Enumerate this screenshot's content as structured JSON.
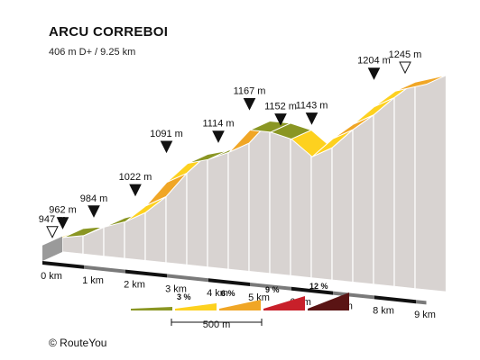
{
  "chart_data": {
    "type": "area",
    "title": "ARCU CORREBOI",
    "subtitle": "406 m D+ / 9.25 km",
    "x_unit": "km",
    "y_unit": "m",
    "distance_ticks": [
      {
        "km": 0,
        "label": "0 km"
      },
      {
        "km": 1,
        "label": "1 km"
      },
      {
        "km": 2,
        "label": "2 km"
      },
      {
        "km": 3,
        "label": "3 km"
      },
      {
        "km": 4,
        "label": "4 km"
      },
      {
        "km": 5,
        "label": "5 km"
      },
      {
        "km": 6,
        "label": "6 km"
      },
      {
        "km": 7,
        "label": "7 km"
      },
      {
        "km": 8,
        "label": "8 km"
      },
      {
        "km": 9,
        "label": "9 km"
      }
    ],
    "profile": [
      {
        "km": 0.0,
        "ele": 947
      },
      {
        "km": 0.25,
        "ele": 962
      },
      {
        "km": 1.0,
        "ele": 984
      },
      {
        "km": 2.0,
        "ele": 1022
      },
      {
        "km": 2.75,
        "ele": 1091
      },
      {
        "km": 4.0,
        "ele": 1114
      },
      {
        "km": 4.75,
        "ele": 1167
      },
      {
        "km": 5.25,
        "ele": 1152
      },
      {
        "km": 6.0,
        "ele": 1143
      },
      {
        "km": 7.25,
        "ele": 1204
      },
      {
        "km": 8.0,
        "ele": 1245
      }
    ],
    "segments": [
      {
        "from": 0.0,
        "to": 0.5,
        "ele_start": 947,
        "ele_end": 962,
        "color": "#fdd11f"
      },
      {
        "from": 0.5,
        "to": 1.0,
        "ele_start": 962,
        "ele_end": 968,
        "color": "#8a9623"
      },
      {
        "from": 1.0,
        "to": 1.5,
        "ele_start": 968,
        "ele_end": 984,
        "color": "#f0a626"
      },
      {
        "from": 1.5,
        "to": 2.0,
        "ele_start": 984,
        "ele_end": 995,
        "color": "#8a9623"
      },
      {
        "from": 2.0,
        "to": 2.5,
        "ele_start": 995,
        "ele_end": 1022,
        "color": "#fdd11f"
      },
      {
        "from": 2.5,
        "to": 3.0,
        "ele_start": 1022,
        "ele_end": 1060,
        "color": "#f0a626"
      },
      {
        "from": 3.0,
        "to": 3.5,
        "ele_start": 1060,
        "ele_end": 1091,
        "color": "#fdd11f"
      },
      {
        "from": 3.5,
        "to": 4.0,
        "ele_start": 1091,
        "ele_end": 1100,
        "color": "#8a9623"
      },
      {
        "from": 4.0,
        "to": 4.5,
        "ele_start": 1100,
        "ele_end": 1114,
        "color": "#8a9623"
      },
      {
        "from": 4.5,
        "to": 5.0,
        "ele_start": 1114,
        "ele_end": 1150,
        "color": "#f0a626"
      },
      {
        "from": 5.0,
        "to": 5.5,
        "ele_start": 1150,
        "ele_end": 1150,
        "color": "#8a9623"
      },
      {
        "from": 5.5,
        "to": 6.0,
        "ele_start": 1150,
        "ele_end": 1143,
        "color": "#8a9623"
      },
      {
        "from": 6.0,
        "to": 6.5,
        "ele_start": 1143,
        "ele_end": 1120,
        "color": "#fdd11f"
      },
      {
        "from": 6.5,
        "to": 7.0,
        "ele_start": 1120,
        "ele_end": 1150,
        "color": "#fdd11f"
      },
      {
        "from": 7.0,
        "to": 7.5,
        "ele_start": 1150,
        "ele_end": 1175,
        "color": "#f0a626"
      },
      {
        "from": 7.5,
        "to": 8.0,
        "ele_start": 1175,
        "ele_end": 1204,
        "color": "#fdd11f"
      },
      {
        "from": 8.0,
        "to": 8.5,
        "ele_start": 1204,
        "ele_end": 1230,
        "color": "#fdd11f"
      },
      {
        "from": 8.5,
        "to": 9.25,
        "ele_start": 1230,
        "ele_end": 1245,
        "color": "#f0a626"
      }
    ],
    "labels": [
      {
        "km": 0.0,
        "text": "947 m",
        "marker": "open"
      },
      {
        "km": 0.25,
        "text": "962 m",
        "marker": "filled"
      },
      {
        "km": 1.0,
        "text": "984 m",
        "marker": "filled"
      },
      {
        "km": 2.0,
        "text": "1022 m",
        "marker": "filled"
      },
      {
        "km": 2.75,
        "text": "1091 m",
        "marker": "filled"
      },
      {
        "km": 4.0,
        "text": "1114 m",
        "marker": "filled"
      },
      {
        "km": 4.75,
        "text": "1167 m",
        "marker": "filled"
      },
      {
        "km": 5.5,
        "text": "1152 m",
        "marker": "filled"
      },
      {
        "km": 6.25,
        "text": "1143 m",
        "marker": "filled"
      },
      {
        "km": 7.75,
        "text": "1204 m",
        "marker": "filled"
      },
      {
        "km": 8.5,
        "text": "1245 m",
        "marker": "open"
      }
    ],
    "legend": {
      "items": [
        {
          "label": "",
          "color": "#8a9623"
        },
        {
          "label": "3 %",
          "color": "#fdd11f"
        },
        {
          "label": "6 %",
          "color": "#f0a626"
        },
        {
          "label": "9 %",
          "color": "#c8202a"
        },
        {
          "label": "12 %",
          "color": "#5a1414"
        }
      ],
      "scale_label": "500 m"
    }
  },
  "footer": {
    "copyright": "© RouteYou"
  },
  "colors": {
    "wall": "#d8d3d1",
    "base_stripe": "#111111"
  }
}
